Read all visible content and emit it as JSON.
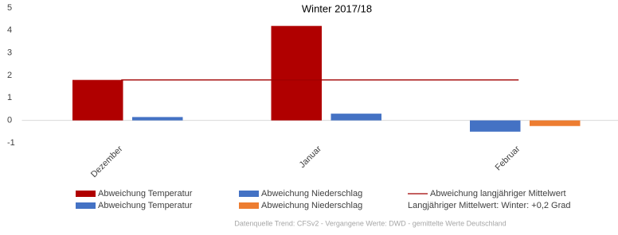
{
  "chart_data": {
    "type": "bar",
    "title": "Winter 2017/18",
    "categories": [
      "Dezember",
      "Januar",
      "Februar"
    ],
    "series": [
      {
        "name": "Abweichung Temperatur",
        "color": "#b00000",
        "values": [
          1.8,
          4.2,
          null
        ]
      },
      {
        "name": "Abweichung Niederschlag",
        "color": "#4472c4",
        "values": [
          0.15,
          0.3,
          null
        ]
      },
      {
        "name": "Abweichung Temperatur",
        "color": "#4472c4",
        "values": [
          null,
          null,
          -0.5
        ]
      },
      {
        "name": "Abweichung Niederschlag",
        "color": "#ed7d31",
        "values": [
          null,
          null,
          -0.25
        ]
      },
      {
        "name": "Abweichung langjähriger Mittelwert",
        "color": "#a00000",
        "type": "line",
        "values": [
          1.8,
          1.8,
          1.8
        ]
      }
    ],
    "ylim": [
      -1,
      5
    ],
    "yticks": [
      -1,
      0,
      1,
      2,
      3,
      4,
      5
    ],
    "note": "Langjähriger Mittelwert: Winter: +0,2 Grad",
    "source": "Datenquelle Trend: CFSv2 - Vergangene Werte: DWD - gemittelte Werte Deutschland"
  }
}
